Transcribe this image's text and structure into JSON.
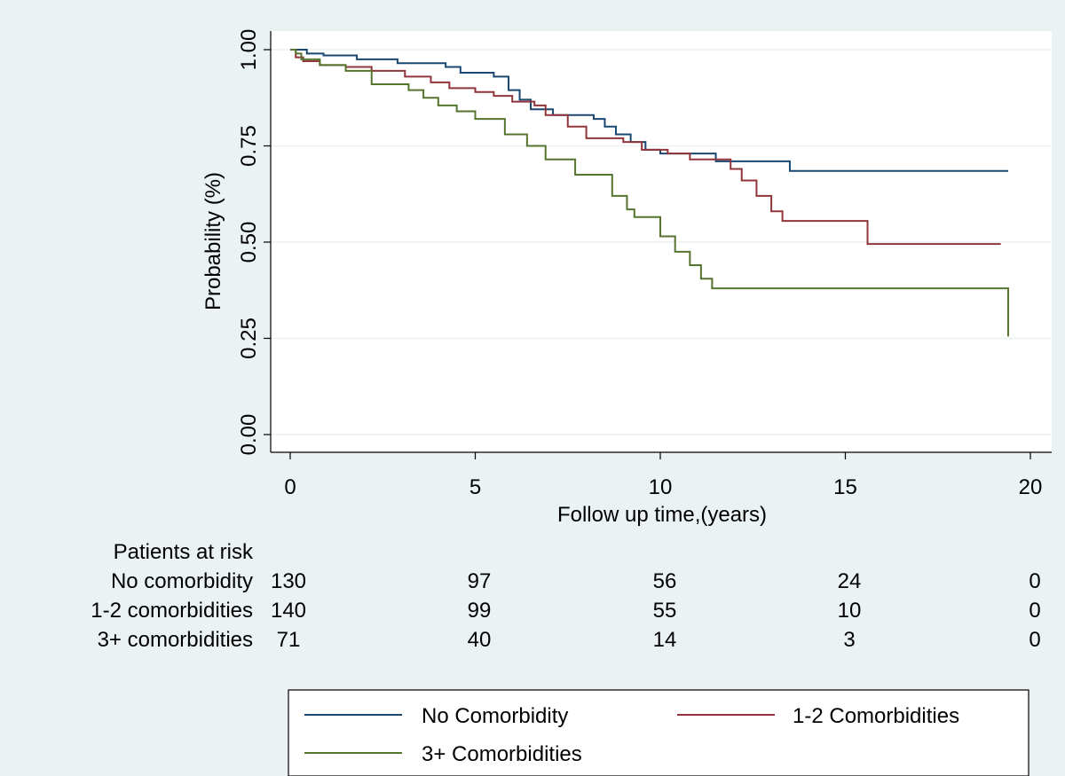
{
  "chart_data": {
    "type": "line",
    "xlabel": "Follow up time,(years)",
    "ylabel": "Probability (%)",
    "xlim": [
      0,
      20
    ],
    "ylim": [
      0,
      1
    ],
    "xticks": [
      "0",
      "5",
      "10",
      "15",
      "20"
    ],
    "yticks": [
      "0.00",
      "0.25",
      "0.50",
      "0.75",
      "1.00"
    ],
    "grid": "horizontal",
    "legend_position": "bottom",
    "colors": {
      "no": "#1a476f",
      "one_two": "#90353b",
      "three_plus": "#55752f"
    },
    "series": [
      {
        "name": "No Comorbidity",
        "color": "#1a476f",
        "x": [
          0,
          0.45,
          0.9,
          1.8,
          2.9,
          4.2,
          4.6,
          5.5,
          5.9,
          6.2,
          6.5,
          7.1,
          8.2,
          8.5,
          8.8,
          9.2,
          9.6,
          10.0,
          11.5,
          13.5,
          19.4
        ],
        "y": [
          1.0,
          0.99,
          0.985,
          0.975,
          0.965,
          0.955,
          0.94,
          0.93,
          0.895,
          0.87,
          0.845,
          0.83,
          0.82,
          0.8,
          0.78,
          0.76,
          0.74,
          0.73,
          0.71,
          0.685,
          0.685
        ]
      },
      {
        "name": "1-2 Comorbidities",
        "color": "#90353b",
        "x": [
          0,
          0.15,
          0.35,
          0.8,
          1.5,
          2.2,
          3.1,
          3.8,
          4.3,
          5.0,
          5.5,
          6.0,
          6.6,
          6.9,
          7.5,
          8.0,
          9.0,
          9.5,
          10.2,
          10.8,
          11.9,
          12.2,
          12.6,
          13.0,
          13.3,
          15.6,
          19.2
        ],
        "y": [
          1.0,
          0.98,
          0.97,
          0.96,
          0.955,
          0.945,
          0.93,
          0.915,
          0.9,
          0.89,
          0.88,
          0.865,
          0.855,
          0.83,
          0.8,
          0.77,
          0.76,
          0.74,
          0.73,
          0.715,
          0.69,
          0.66,
          0.62,
          0.58,
          0.555,
          0.495,
          0.495
        ]
      },
      {
        "name": "3+ Comorbidities",
        "color": "#55752f",
        "x": [
          0,
          0.15,
          0.3,
          0.8,
          1.5,
          2.2,
          3.2,
          3.6,
          4.0,
          4.5,
          5.0,
          5.8,
          6.4,
          6.9,
          7.7,
          8.7,
          9.1,
          9.3,
          10.0,
          10.4,
          10.8,
          11.1,
          11.4,
          17.2,
          19.4
        ],
        "y": [
          1.0,
          0.99,
          0.975,
          0.96,
          0.945,
          0.91,
          0.895,
          0.875,
          0.855,
          0.84,
          0.82,
          0.78,
          0.75,
          0.715,
          0.675,
          0.62,
          0.585,
          0.565,
          0.515,
          0.475,
          0.44,
          0.405,
          0.38,
          0.38,
          0.255
        ]
      }
    ]
  },
  "risk_table": {
    "title": "Patients at risk",
    "rows": [
      {
        "label": "No comorbidity",
        "values": [
          "130",
          "97",
          "56",
          "24",
          "0"
        ]
      },
      {
        "label": "1-2 comorbidities",
        "values": [
          "140",
          "99",
          "55",
          "10",
          "0"
        ]
      },
      {
        "label": "3+ comorbidities",
        "values": [
          "71",
          "40",
          "14",
          "3",
          "0"
        ]
      }
    ]
  }
}
